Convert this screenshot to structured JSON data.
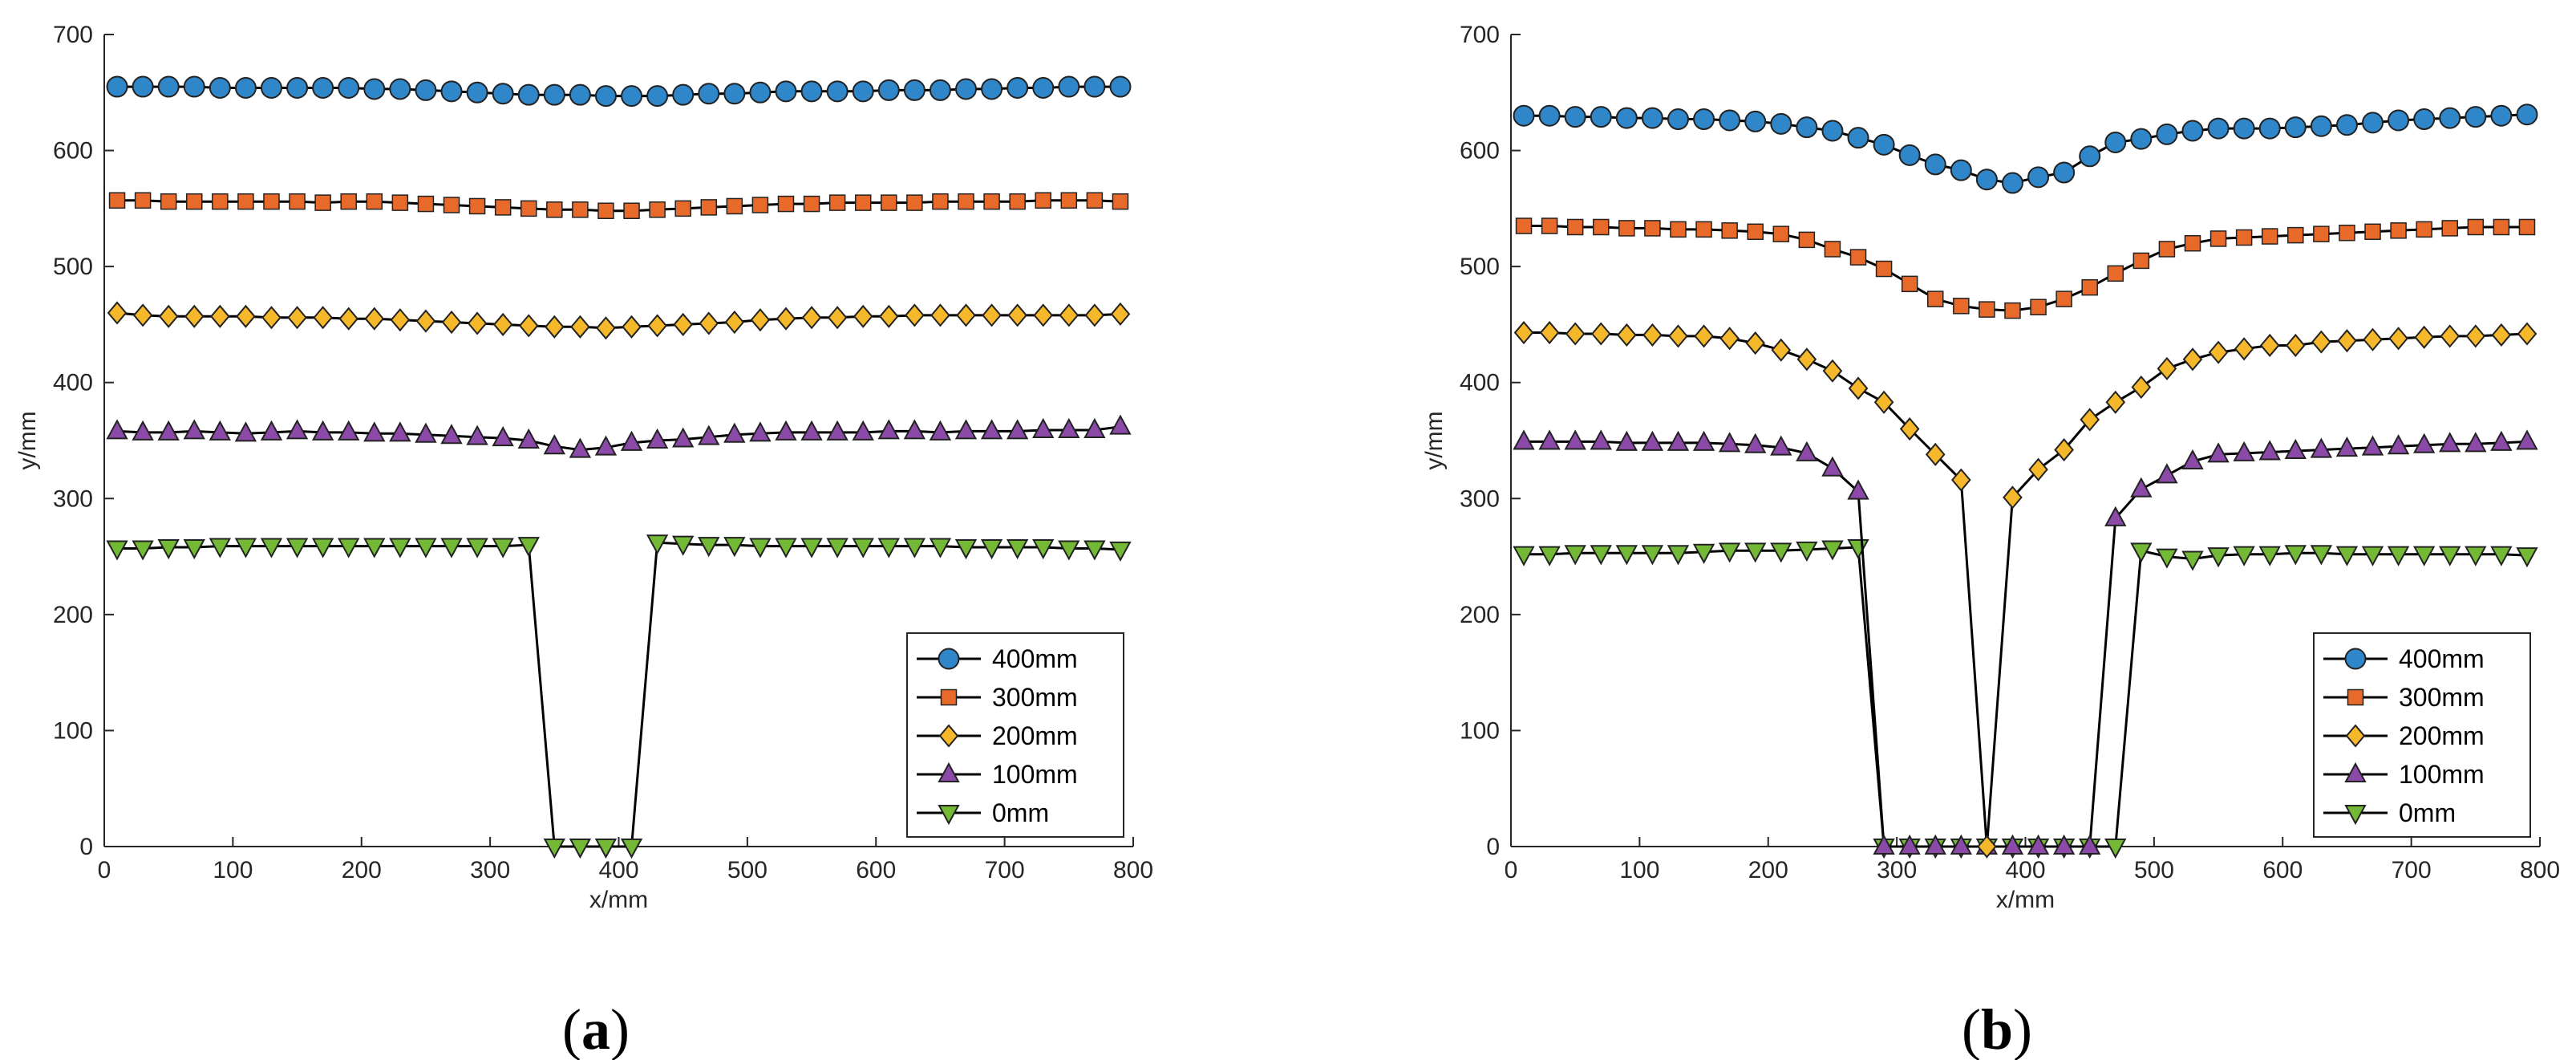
{
  "colors": {
    "line": "#000000",
    "marker_stroke": "#222222",
    "axis": "#262626",
    "s400": "#2f86c9",
    "s300": "#e86a2b",
    "s200": "#f5b82a",
    "s100": "#8b4aa8",
    "s0": "#74b936"
  },
  "panel_labels": [
    {
      "open": "(",
      "letter": "a",
      "close": ")"
    },
    {
      "open": "(",
      "letter": "b",
      "close": ")"
    }
  ],
  "chart_data": [
    {
      "type": "line",
      "panel": "a",
      "xlabel": "x/mm",
      "ylabel": "y/mm",
      "xlim": [
        0,
        800
      ],
      "ylim": [
        0,
        700
      ],
      "xticks": [
        0,
        100,
        200,
        300,
        400,
        500,
        600,
        700,
        800
      ],
      "yticks": [
        0,
        100,
        200,
        300,
        400,
        500,
        600,
        700
      ],
      "legend_position": "bottom-right",
      "x": [
        10,
        30,
        50,
        70,
        90,
        110,
        130,
        150,
        170,
        190,
        210,
        230,
        250,
        270,
        290,
        310,
        330,
        350,
        370,
        390,
        410,
        430,
        450,
        470,
        490,
        510,
        530,
        550,
        570,
        590,
        610,
        630,
        650,
        670,
        690,
        710,
        730,
        750,
        770,
        790
      ],
      "series": [
        {
          "name": "400mm",
          "marker": "circle",
          "color_key": "s400",
          "values": [
            655,
            655,
            655,
            655,
            654,
            654,
            654,
            654,
            654,
            654,
            653,
            653,
            652,
            651,
            650,
            649,
            648,
            648,
            648,
            647,
            647,
            647,
            648,
            649,
            649,
            650,
            651,
            651,
            651,
            651,
            652,
            652,
            652,
            653,
            653,
            654,
            654,
            655,
            655,
            655
          ]
        },
        {
          "name": "300mm",
          "marker": "square",
          "color_key": "s300",
          "values": [
            557,
            557,
            556,
            556,
            556,
            556,
            556,
            556,
            555,
            556,
            556,
            555,
            554,
            553,
            552,
            551,
            550,
            549,
            549,
            548,
            548,
            549,
            550,
            551,
            552,
            553,
            554,
            554,
            555,
            555,
            555,
            555,
            556,
            556,
            556,
            556,
            557,
            557,
            557,
            556
          ]
        },
        {
          "name": "200mm",
          "marker": "diamond",
          "color_key": "s200",
          "values": [
            460,
            458,
            457,
            457,
            457,
            457,
            456,
            456,
            456,
            455,
            455,
            454,
            453,
            452,
            451,
            450,
            449,
            448,
            448,
            447,
            448,
            449,
            450,
            451,
            452,
            454,
            455,
            456,
            456,
            457,
            457,
            458,
            458,
            458,
            458,
            458,
            458,
            458,
            458,
            459
          ]
        },
        {
          "name": "100mm",
          "marker": "triangle-up",
          "color_key": "s100",
          "values": [
            358,
            357,
            357,
            358,
            357,
            356,
            357,
            358,
            357,
            357,
            356,
            356,
            355,
            354,
            353,
            352,
            350,
            345,
            342,
            344,
            348,
            350,
            351,
            353,
            355,
            356,
            357,
            357,
            357,
            357,
            358,
            358,
            357,
            358,
            358,
            358,
            359,
            359,
            359,
            362
          ]
        },
        {
          "name": "0mm",
          "marker": "triangle-down",
          "color_key": "s0",
          "values": [
            257,
            257,
            258,
            258,
            259,
            259,
            259,
            259,
            259,
            259,
            259,
            259,
            259,
            259,
            259,
            259,
            260,
            0,
            0,
            0,
            0,
            262,
            261,
            260,
            260,
            259,
            259,
            259,
            259,
            259,
            259,
            259,
            259,
            258,
            258,
            258,
            258,
            257,
            257,
            256
          ]
        }
      ]
    },
    {
      "type": "line",
      "panel": "b",
      "xlabel": "x/mm",
      "ylabel": "y/mm",
      "xlim": [
        0,
        800
      ],
      "ylim": [
        0,
        700
      ],
      "xticks": [
        0,
        100,
        200,
        300,
        400,
        500,
        600,
        700,
        800
      ],
      "yticks": [
        0,
        100,
        200,
        300,
        400,
        500,
        600,
        700
      ],
      "legend_position": "bottom-right",
      "x": [
        10,
        30,
        50,
        70,
        90,
        110,
        130,
        150,
        170,
        190,
        210,
        230,
        250,
        270,
        290,
        310,
        330,
        350,
        370,
        390,
        410,
        430,
        450,
        470,
        490,
        510,
        530,
        550,
        570,
        590,
        610,
        630,
        650,
        670,
        690,
        710,
        730,
        750,
        770,
        790
      ],
      "series": [
        {
          "name": "400mm",
          "marker": "circle",
          "color_key": "s400",
          "values": [
            630,
            630,
            629,
            629,
            628,
            628,
            627,
            627,
            626,
            625,
            623,
            620,
            617,
            611,
            605,
            596,
            588,
            583,
            575,
            572,
            577,
            581,
            595,
            607,
            610,
            614,
            617,
            619,
            619,
            619,
            620,
            621,
            622,
            624,
            626,
            627,
            628,
            629,
            630,
            631
          ]
        },
        {
          "name": "300mm",
          "marker": "square",
          "color_key": "s300",
          "values": [
            535,
            535,
            534,
            534,
            533,
            533,
            532,
            532,
            531,
            530,
            528,
            523,
            515,
            508,
            498,
            485,
            472,
            466,
            463,
            462,
            465,
            472,
            482,
            494,
            505,
            515,
            520,
            524,
            525,
            526,
            527,
            528,
            529,
            530,
            531,
            532,
            533,
            534,
            534,
            534
          ]
        },
        {
          "name": "200mm",
          "marker": "diamond",
          "color_key": "s200",
          "values": [
            443,
            443,
            442,
            442,
            441,
            441,
            440,
            440,
            438,
            434,
            428,
            420,
            410,
            395,
            383,
            360,
            338,
            316,
            0,
            301,
            325,
            342,
            368,
            383,
            396,
            412,
            420,
            426,
            429,
            432,
            432,
            435,
            436,
            437,
            438,
            439,
            440,
            440,
            441,
            442
          ]
        },
        {
          "name": "100mm",
          "marker": "triangle-up",
          "color_key": "s100",
          "values": [
            349,
            349,
            349,
            349,
            348,
            348,
            348,
            348,
            347,
            346,
            344,
            339,
            326,
            306,
            0,
            0,
            0,
            0,
            0,
            0,
            0,
            0,
            0,
            283,
            308,
            320,
            332,
            338,
            339,
            340,
            341,
            342,
            343,
            344,
            345,
            346,
            347,
            347,
            348,
            349
          ]
        },
        {
          "name": "0mm",
          "marker": "triangle-down",
          "color_key": "s0",
          "values": [
            252,
            252,
            253,
            253,
            253,
            253,
            253,
            254,
            255,
            255,
            255,
            256,
            257,
            258,
            0,
            0,
            0,
            0,
            0,
            0,
            0,
            0,
            0,
            0,
            255,
            250,
            248,
            251,
            252,
            252,
            253,
            253,
            252,
            252,
            252,
            252,
            252,
            252,
            252,
            251
          ]
        }
      ]
    }
  ]
}
